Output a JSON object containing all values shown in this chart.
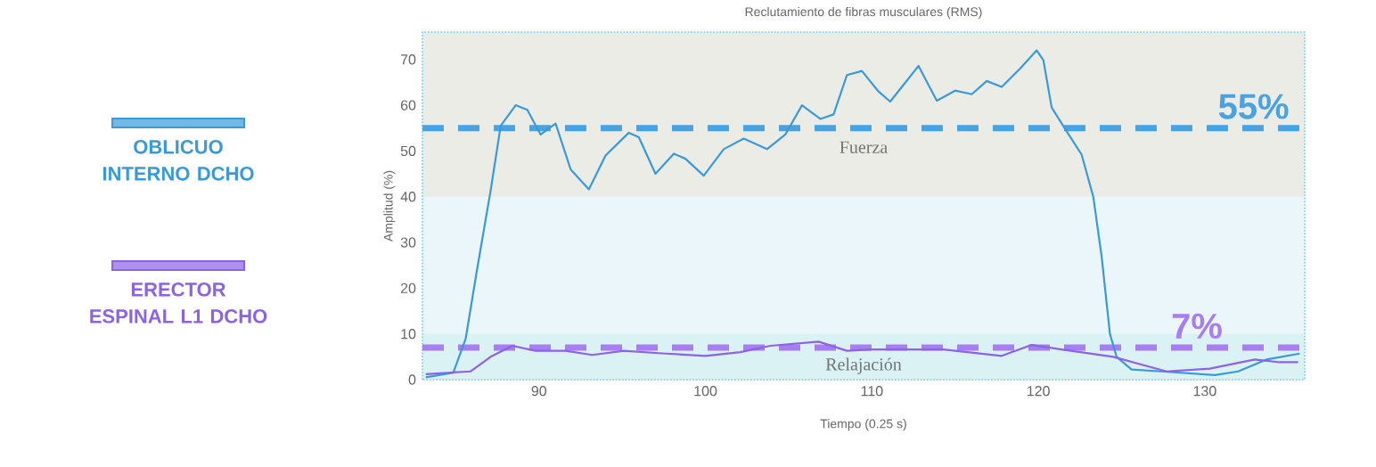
{
  "chart_data": {
    "type": "line",
    "title": "Reclutamiento de fibras musculares (RMS)",
    "xlabel": "Tiempo (0.25 s)",
    "ylabel": "Amplitud (%)",
    "xlim": [
      83,
      136
    ],
    "ylim": [
      0,
      76
    ],
    "xticks": [
      90,
      100,
      110,
      120,
      130
    ],
    "yticks": [
      0,
      10,
      20,
      30,
      40,
      50,
      60,
      70
    ],
    "grid": true,
    "legend": "left",
    "line_style": "solid",
    "marker": "none",
    "series": [
      {
        "name": "OBLICUO INTERNO DCHO",
        "color": "#3a9ad9",
        "x": [
          83.2,
          84.85,
          85.6,
          86.3,
          87.1,
          87.7,
          88.6,
          89.3,
          90.1,
          91.0,
          91.9,
          93.0,
          94.0,
          95.4,
          96.0,
          97.0,
          98.1,
          98.8,
          99.9,
          101.1,
          102.3,
          103.7,
          104.8,
          105.8,
          106.9,
          107.7,
          108.5,
          109.4,
          110.4,
          111.1,
          112.8,
          113.9,
          115.0,
          116.0,
          116.9,
          117.8,
          118.9,
          119.9,
          120.3,
          120.8,
          121.7,
          122.6,
          123.3,
          123.8,
          124.3,
          124.7,
          125.6,
          127.4,
          130.6,
          132.0,
          133.7,
          135.7
        ],
        "values": [
          0.5,
          1.5,
          9,
          24.5,
          41.4,
          55.5,
          60,
          59,
          53.6,
          56,
          46,
          41.6,
          49,
          54,
          53,
          45,
          49.4,
          48.3,
          44.6,
          50.4,
          52.7,
          50.4,
          53.6,
          60,
          57,
          58,
          66.6,
          67.5,
          63,
          60.8,
          68.6,
          61,
          63.2,
          62.4,
          65.3,
          64,
          68,
          72,
          69.9,
          59.5,
          54.3,
          49.2,
          40,
          27,
          10,
          5,
          2.2,
          1.8,
          1,
          1.8,
          4.4,
          5.7
        ]
      },
      {
        "name": "ERECTOR ESPINAL L1 DCHO",
        "color": "#8b62e8",
        "x": [
          83.2,
          85.9,
          87.1,
          88.4,
          89.8,
          91.6,
          93.2,
          95.1,
          97.6,
          100.0,
          102.1,
          103.9,
          106.8,
          108.5,
          110.0,
          114.3,
          117.8,
          119.6,
          121.4,
          124.5,
          127.7,
          130.3,
          133.0,
          134.5,
          135.6
        ],
        "values": [
          1.2,
          1.8,
          5,
          7.4,
          6.3,
          6.3,
          5.4,
          6.3,
          5.7,
          5.2,
          6,
          7.4,
          8.3,
          6.3,
          6.6,
          6.6,
          5.2,
          7.6,
          6.6,
          5,
          1.8,
          2.4,
          4.4,
          3.8,
          3.8
        ]
      }
    ],
    "ref_lines": [
      {
        "axis": "y",
        "value": 55,
        "label": "55%",
        "color": "#4aa3e0",
        "line_style": "dashed"
      },
      {
        "axis": "y",
        "value": 7,
        "label": "7%",
        "color": "#a67ef0",
        "line_style": "dashed"
      }
    ],
    "bands": [
      {
        "axis": "y",
        "from": 40,
        "to": 76,
        "label": "Fuerza",
        "color": "#ececE6"
      },
      {
        "axis": "y",
        "from": 10,
        "to": 40,
        "label": null,
        "color": "#eaf6fa"
      },
      {
        "axis": "y",
        "from": 0,
        "to": 10,
        "label": "Relajación",
        "color": "#dbf2f5"
      }
    ]
  }
}
